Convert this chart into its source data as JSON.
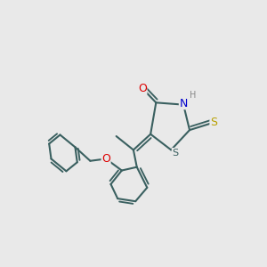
{
  "background_color": "#e9e9e9",
  "bond_color": "#3a6060",
  "atom_colors": {
    "O": "#dd0000",
    "N": "#0000cc",
    "S_thioxo": "#b8a000",
    "S_ring": "#3a6060",
    "H": "#888888",
    "C": "#3a6060"
  },
  "figsize": [
    3.0,
    3.0
  ],
  "dpi": 100
}
